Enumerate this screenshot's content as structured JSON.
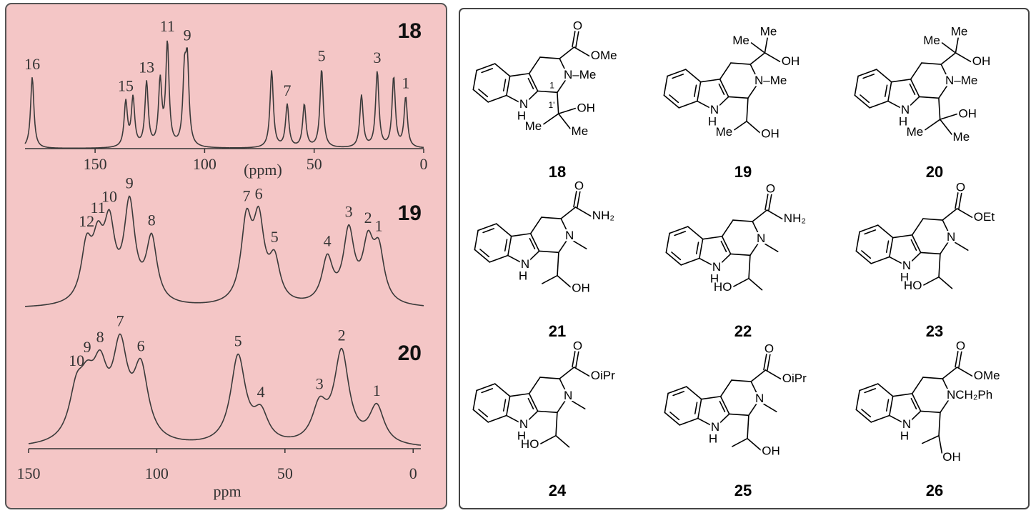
{
  "chart_data": [
    {
      "type": "spectrum",
      "title": "18",
      "xlabel": "(ppm)",
      "xlim": [
        182,
        0
      ],
      "xticks": [
        150,
        100,
        50,
        0
      ],
      "labels": [
        "16",
        "15",
        null,
        "13",
        null,
        "11",
        null,
        "9",
        null,
        "7",
        null,
        "5",
        null,
        "3",
        null,
        "1"
      ],
      "x": [
        178.7,
        136,
        132.7,
        126.5,
        120.3,
        117,
        109.2,
        107.9,
        69.4,
        62.3,
        54.5,
        46.6,
        28.4,
        21.2,
        13.7,
        8.2
      ],
      "values": [
        100,
        63,
        68,
        90,
        90,
        143,
        93,
        108,
        108,
        60,
        60,
        110,
        73,
        106,
        98,
        70
      ]
    },
    {
      "type": "spectrum",
      "title": "19",
      "xlim": [
        182,
        0
      ],
      "labels": [
        "12",
        "11",
        "10",
        "9",
        "8",
        "7",
        "6",
        "5",
        "4",
        "3",
        "2",
        "1"
      ],
      "x": [
        153.9,
        148.7,
        143.5,
        134.3,
        124.2,
        80.9,
        75.3,
        68.1,
        44.0,
        34.2,
        25.4,
        20.5
      ],
      "values": [
        74,
        72,
        99,
        135,
        89,
        110,
        107,
        57,
        62,
        99,
        77,
        70
      ]
    },
    {
      "type": "spectrum",
      "title": "20",
      "xlabel": "ppm",
      "xlim": [
        150,
        -3
      ],
      "xticks": [
        150,
        100,
        50,
        0
      ],
      "labels": [
        "10",
        "9",
        "8",
        "7",
        "6",
        "5",
        "4",
        "3",
        "2",
        "1"
      ],
      "x": [
        131.3,
        127.1,
        122.1,
        114.3,
        106.2,
        68.3,
        59.4,
        36.5,
        27.9,
        14.2
      ],
      "values": [
        63,
        58,
        85,
        123,
        98,
        123,
        40,
        50,
        128,
        53
      ]
    }
  ],
  "structures": [
    {
      "number": "18",
      "labels": [
        "O",
        "OMe",
        "N–Me",
        "N",
        "H",
        "1",
        "1'",
        "OH",
        "Me",
        "Me"
      ]
    },
    {
      "number": "19",
      "labels": [
        "Me",
        "Me",
        "OH",
        "N–Me",
        "N",
        "H",
        "Me",
        "OH"
      ]
    },
    {
      "number": "20",
      "labels": [
        "Me",
        "Me",
        "OH",
        "N–Me",
        "N",
        "H",
        "OH",
        "Me",
        "Me"
      ]
    },
    {
      "number": "21",
      "labels": [
        "O",
        "NH₂",
        "N",
        "N",
        "H",
        "OH"
      ]
    },
    {
      "number": "22",
      "labels": [
        "O",
        "NH₂",
        "N",
        "N",
        "H",
        "HO"
      ]
    },
    {
      "number": "23",
      "labels": [
        "O",
        "OEt",
        "N",
        "N",
        "H",
        "HO"
      ]
    },
    {
      "number": "24",
      "labels": [
        "O",
        "OiPr",
        "N",
        "N",
        "H",
        "HO"
      ]
    },
    {
      "number": "25",
      "labels": [
        "O",
        "OiPr",
        "N",
        "N",
        "H",
        "OH"
      ]
    },
    {
      "number": "26",
      "labels": [
        "O",
        "OMe",
        "NCH₂Ph",
        "N",
        "H",
        "OH"
      ]
    }
  ]
}
